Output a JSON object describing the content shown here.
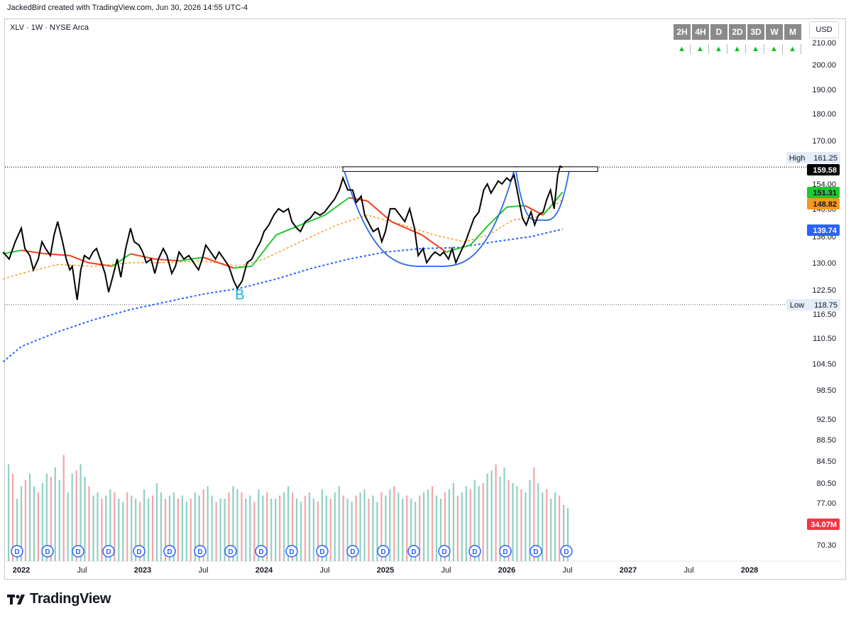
{
  "header": {
    "credit": "JackedBird created with TradingView.com, Jun 30, 2026 14:55 UTC-4",
    "symbol": "XLV · 1W · NYSE Arca"
  },
  "timeframes": [
    "2H",
    "4H",
    "D",
    "2D",
    "3D",
    "W",
    "M"
  ],
  "currency": "USD",
  "logo_text": "TradingView",
  "colors": {
    "price": "#000000",
    "ema_fast": "#22c732",
    "ema_slow_down": "#f23e1f",
    "ema_mid": "#f7991d",
    "sma_long": "#2962ff",
    "cup": "#2d6ae8",
    "vol_up": "#8fd0c4",
    "vol_down": "#f4a6a6",
    "dividend": "#2962ff"
  },
  "chart_data": {
    "type": "line",
    "price_axis": {
      "ticks": [
        "210.00",
        "200.00",
        "190.00",
        "180.00",
        "170.00",
        "154.00",
        "146.00",
        "136.00",
        "130.00",
        "122.50",
        "116.50",
        "110.50",
        "104.50",
        "98.50",
        "92.50",
        "88.50",
        "84.50",
        "80.50",
        "77.00",
        "70.30"
      ],
      "log": true
    },
    "time_axis": {
      "ticks": [
        "2022",
        "Jul",
        "2023",
        "Jul",
        "2024",
        "Jul",
        "2025",
        "Jul",
        "2026",
        "Jul",
        "2027",
        "Jul",
        "2028"
      ]
    },
    "labels": {
      "high": {
        "text": "High",
        "value": "161.25"
      },
      "low": {
        "text": "Low",
        "value": "118.75"
      },
      "last_price": "159.58",
      "ema_fast_last": "151.31",
      "ema_mid_last": "148.82",
      "sma_long_last": "139.74",
      "volume_last": "34.07M",
      "signal": "B",
      "dividend_marker": "D"
    },
    "series": [
      {
        "key": "price",
        "values": [
          [
            2021.85,
            133
          ],
          [
            2021.9,
            131
          ],
          [
            2021.95,
            136
          ],
          [
            2022.0,
            140
          ],
          [
            2022.03,
            134
          ],
          [
            2022.07,
            132
          ],
          [
            2022.1,
            128
          ],
          [
            2022.14,
            131
          ],
          [
            2022.17,
            136
          ],
          [
            2022.2,
            134
          ],
          [
            2022.24,
            132
          ],
          [
            2022.27,
            138
          ],
          [
            2022.3,
            142
          ],
          [
            2022.34,
            136
          ],
          [
            2022.37,
            131
          ],
          [
            2022.4,
            128
          ],
          [
            2022.42,
            129
          ],
          [
            2022.46,
            120
          ],
          [
            2022.49,
            128
          ],
          [
            2022.52,
            132
          ],
          [
            2022.56,
            131
          ],
          [
            2022.59,
            133
          ],
          [
            2022.62,
            134
          ],
          [
            2022.66,
            130
          ],
          [
            2022.69,
            127
          ],
          [
            2022.72,
            122
          ],
          [
            2022.76,
            127
          ],
          [
            2022.79,
            131
          ],
          [
            2022.82,
            126
          ],
          [
            2022.86,
            134
          ],
          [
            2022.9,
            140
          ],
          [
            2022.93,
            136
          ],
          [
            2022.97,
            135
          ],
          [
            2023.0,
            133
          ],
          [
            2023.03,
            130
          ],
          [
            2023.07,
            131
          ],
          [
            2023.1,
            127
          ],
          [
            2023.13,
            131
          ],
          [
            2023.17,
            134
          ],
          [
            2023.2,
            132
          ],
          [
            2023.24,
            127
          ],
          [
            2023.27,
            129
          ],
          [
            2023.3,
            133
          ],
          [
            2023.34,
            131
          ],
          [
            2023.38,
            132
          ],
          [
            2023.42,
            130
          ],
          [
            2023.46,
            128
          ],
          [
            2023.49,
            131
          ],
          [
            2023.52,
            135
          ],
          [
            2023.56,
            133
          ],
          [
            2023.6,
            131
          ],
          [
            2023.63,
            133
          ],
          [
            2023.67,
            131
          ],
          [
            2023.71,
            129
          ],
          [
            2023.75,
            125
          ],
          [
            2023.78,
            123
          ],
          [
            2023.82,
            125
          ],
          [
            2023.86,
            130
          ],
          [
            2023.9,
            131
          ],
          [
            2023.94,
            134
          ],
          [
            2023.97,
            136
          ],
          [
            2024.0,
            139
          ],
          [
            2024.04,
            141
          ],
          [
            2024.08,
            144
          ],
          [
            2024.12,
            146
          ],
          [
            2024.16,
            145
          ],
          [
            2024.2,
            146
          ],
          [
            2024.23,
            142
          ],
          [
            2024.27,
            140
          ],
          [
            2024.3,
            139
          ],
          [
            2024.34,
            142
          ],
          [
            2024.38,
            143
          ],
          [
            2024.42,
            145
          ],
          [
            2024.46,
            144
          ],
          [
            2024.5,
            145
          ],
          [
            2024.54,
            147
          ],
          [
            2024.58,
            149
          ],
          [
            2024.62,
            152
          ],
          [
            2024.65,
            156
          ],
          [
            2024.69,
            152
          ],
          [
            2024.73,
            152
          ],
          [
            2024.76,
            148
          ],
          [
            2024.8,
            150
          ],
          [
            2024.83,
            144
          ],
          [
            2024.87,
            141
          ],
          [
            2024.9,
            139
          ],
          [
            2024.94,
            140
          ],
          [
            2024.97,
            136
          ],
          [
            2025.0,
            139
          ],
          [
            2025.04,
            146
          ],
          [
            2025.08,
            146
          ],
          [
            2025.12,
            144
          ],
          [
            2025.16,
            142
          ],
          [
            2025.2,
            146
          ],
          [
            2025.24,
            140
          ],
          [
            2025.27,
            132
          ],
          [
            2025.31,
            134
          ],
          [
            2025.34,
            130
          ],
          [
            2025.38,
            132
          ],
          [
            2025.41,
            133
          ],
          [
            2025.45,
            132
          ],
          [
            2025.48,
            133
          ],
          [
            2025.52,
            131
          ],
          [
            2025.55,
            134
          ],
          [
            2025.58,
            130
          ],
          [
            2025.62,
            133
          ],
          [
            2025.66,
            136
          ],
          [
            2025.7,
            140
          ],
          [
            2025.73,
            143
          ],
          [
            2025.77,
            145
          ],
          [
            2025.81,
            152
          ],
          [
            2025.84,
            154
          ],
          [
            2025.87,
            151
          ],
          [
            2025.9,
            153
          ],
          [
            2025.93,
            155
          ],
          [
            2025.96,
            154
          ],
          [
            2026.0,
            156
          ],
          [
            2026.03,
            155
          ],
          [
            2026.06,
            157
          ],
          [
            2026.09,
            151
          ],
          [
            2026.13,
            143
          ],
          [
            2026.16,
            141
          ],
          [
            2026.2,
            145
          ],
          [
            2026.23,
            141
          ],
          [
            2026.26,
            144
          ],
          [
            2026.3,
            145
          ],
          [
            2026.33,
            149
          ],
          [
            2026.36,
            152
          ],
          [
            2026.39,
            146
          ],
          [
            2026.42,
            157
          ],
          [
            2026.44,
            160
          ],
          [
            2026.46,
            159.58
          ]
        ]
      },
      {
        "key": "ema_fast",
        "values": [
          [
            2021.85,
            132.5
          ],
          [
            2022.0,
            133.5
          ],
          [
            2022.2,
            132.5
          ],
          [
            2022.4,
            132
          ],
          [
            2022.55,
            130
          ],
          [
            2022.75,
            129
          ],
          [
            2022.9,
            132.5
          ],
          [
            2023.1,
            131
          ],
          [
            2023.3,
            130.5
          ],
          [
            2023.5,
            131.5
          ],
          [
            2023.75,
            128.5
          ],
          [
            2023.9,
            129
          ],
          [
            2024.1,
            138
          ],
          [
            2024.3,
            141
          ],
          [
            2024.5,
            144
          ],
          [
            2024.7,
            149.5
          ],
          [
            2024.85,
            148.5
          ],
          [
            2025.05,
            142
          ],
          [
            2025.3,
            138
          ],
          [
            2025.5,
            133
          ],
          [
            2025.7,
            135
          ],
          [
            2025.85,
            141
          ],
          [
            2026.0,
            146.5
          ],
          [
            2026.15,
            147
          ],
          [
            2026.3,
            144
          ],
          [
            2026.46,
            151.31
          ]
        ]
      },
      {
        "key": "ema_mid",
        "values": [
          [
            2021.85,
            125.5
          ],
          [
            2022.0,
            127
          ],
          [
            2022.3,
            129.5
          ],
          [
            2022.6,
            129
          ],
          [
            2022.9,
            130
          ],
          [
            2023.2,
            130
          ],
          [
            2023.5,
            130.5
          ],
          [
            2023.8,
            129
          ],
          [
            2024.0,
            131
          ],
          [
            2024.3,
            136
          ],
          [
            2024.6,
            141
          ],
          [
            2024.85,
            144
          ],
          [
            2025.1,
            141.5
          ],
          [
            2025.4,
            138
          ],
          [
            2025.65,
            136
          ],
          [
            2025.85,
            138
          ],
          [
            2026.05,
            142.5
          ],
          [
            2026.25,
            143.5
          ],
          [
            2026.46,
            148.82
          ]
        ]
      },
      {
        "key": "sma_long",
        "values": [
          [
            2021.85,
            105
          ],
          [
            2022.0,
            108.5
          ],
          [
            2022.3,
            112
          ],
          [
            2022.6,
            115
          ],
          [
            2022.9,
            117.5
          ],
          [
            2023.2,
            119.5
          ],
          [
            2023.5,
            121.5
          ],
          [
            2023.8,
            123
          ],
          [
            2024.1,
            125.5
          ],
          [
            2024.4,
            128.5
          ],
          [
            2024.7,
            131
          ],
          [
            2025.0,
            133
          ],
          [
            2025.3,
            134
          ],
          [
            2025.6,
            134.3
          ],
          [
            2025.9,
            136
          ],
          [
            2026.2,
            137.5
          ],
          [
            2026.46,
            139.74
          ]
        ]
      }
    ],
    "resistance_box": {
      "x": [
        2024.65,
        2026.75
      ],
      "y": [
        158.2,
        159.8
      ]
    },
    "cups": [
      {
        "x0": 2024.65,
        "x_bottom": 2025.38,
        "x1": 2026.07,
        "top": 160,
        "bottom": 129
      },
      {
        "x0": 2026.07,
        "x_bottom": 2026.28,
        "x1": 2026.52,
        "top": 160,
        "bottom": 142.5
      }
    ],
    "volume_millis": [
      62,
      56,
      40,
      48,
      52,
      56,
      48,
      44,
      50,
      56,
      54,
      60,
      52,
      68,
      44,
      56,
      58,
      62,
      54,
      48,
      42,
      44,
      40,
      42,
      46,
      44,
      40,
      38,
      44,
      42,
      40,
      38,
      46,
      40,
      42,
      50,
      44,
      40,
      42,
      44,
      40,
      42,
      38,
      40,
      44,
      42,
      46,
      48,
      42,
      38,
      40,
      40,
      44,
      48,
      46,
      44,
      40,
      42,
      38,
      46,
      42,
      44,
      40,
      40,
      42,
      44,
      48,
      44,
      40,
      38,
      42,
      44,
      40,
      38,
      46,
      42,
      40,
      44,
      48,
      42,
      40,
      38,
      42,
      44,
      46,
      40,
      42,
      38,
      44,
      42,
      46,
      48,
      44,
      40,
      42,
      40,
      38,
      42,
      44,
      46,
      48,
      42,
      40,
      44,
      46,
      50,
      42,
      44,
      48,
      46,
      52,
      48,
      50,
      56,
      58,
      62,
      54,
      60,
      52,
      50,
      48,
      46,
      44,
      52,
      60,
      50,
      44,
      46,
      40,
      44,
      42,
      36,
      34.07
    ]
  }
}
